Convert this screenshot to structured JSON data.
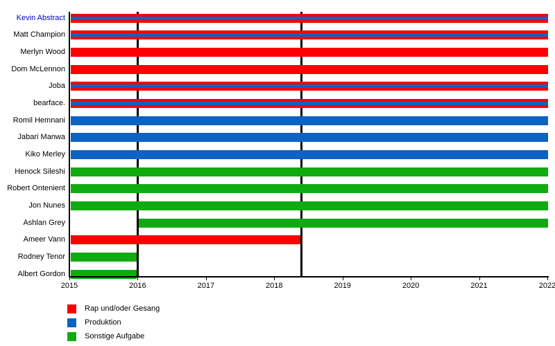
{
  "chart_data": {
    "type": "timeline",
    "description": "Band member timeline chart, roles shown as colored horizontal bars per member",
    "link_color": "#0000cc",
    "axis_color": "#000000",
    "x_axis": {
      "min": 2015,
      "max": 2022,
      "ticks": [
        2015,
        2016,
        2017,
        2018,
        2019,
        2020,
        2021,
        2022
      ]
    },
    "event_lines": [
      2016,
      2018.4
    ],
    "roles": {
      "vocals": {
        "label": "Rap und/oder Gesang",
        "color": "#fa0000"
      },
      "production": {
        "label": "Produktion",
        "color": "#0c63c4"
      },
      "other": {
        "label": "Sonstige Aufgabe",
        "color": "#10ab10"
      }
    },
    "legend_order": [
      "vocals",
      "production",
      "other"
    ],
    "members": [
      {
        "name": "Kevin Abstract",
        "link": true,
        "bars": [
          {
            "roles": [
              "vocals",
              "production"
            ],
            "from": 2015,
            "to": 2022
          }
        ]
      },
      {
        "name": "Matt Champion",
        "link": false,
        "bars": [
          {
            "roles": [
              "vocals",
              "production"
            ],
            "from": 2015,
            "to": 2022
          }
        ]
      },
      {
        "name": "Merlyn Wood",
        "link": false,
        "bars": [
          {
            "roles": [
              "vocals"
            ],
            "from": 2015,
            "to": 2022
          }
        ]
      },
      {
        "name": "Dom McLennon",
        "link": false,
        "bars": [
          {
            "roles": [
              "vocals"
            ],
            "from": 2015,
            "to": 2022
          }
        ]
      },
      {
        "name": "Joba",
        "link": false,
        "bars": [
          {
            "roles": [
              "vocals",
              "production"
            ],
            "from": 2015,
            "to": 2022
          }
        ]
      },
      {
        "name": "bearface.",
        "link": false,
        "bars": [
          {
            "roles": [
              "vocals",
              "production"
            ],
            "from": 2015,
            "to": 2022
          }
        ]
      },
      {
        "name": "Romil Hemnani",
        "link": false,
        "bars": [
          {
            "roles": [
              "production"
            ],
            "from": 2015,
            "to": 2022
          }
        ]
      },
      {
        "name": "Jabari Manwa",
        "link": false,
        "bars": [
          {
            "roles": [
              "production"
            ],
            "from": 2015,
            "to": 2022
          }
        ]
      },
      {
        "name": "Kiko Merley",
        "link": false,
        "bars": [
          {
            "roles": [
              "production"
            ],
            "from": 2015,
            "to": 2022
          }
        ]
      },
      {
        "name": "Henock Sileshi",
        "link": false,
        "bars": [
          {
            "roles": [
              "other"
            ],
            "from": 2015,
            "to": 2022
          }
        ]
      },
      {
        "name": "Robert Ontenient",
        "link": false,
        "bars": [
          {
            "roles": [
              "other"
            ],
            "from": 2015,
            "to": 2022
          }
        ]
      },
      {
        "name": "Jon Nunes",
        "link": false,
        "bars": [
          {
            "roles": [
              "other"
            ],
            "from": 2015,
            "to": 2022
          }
        ]
      },
      {
        "name": "Ashlan Grey",
        "link": false,
        "bars": [
          {
            "roles": [
              "other"
            ],
            "from": 2016,
            "to": 2022
          }
        ]
      },
      {
        "name": "Ameer Vann",
        "link": false,
        "bars": [
          {
            "roles": [
              "vocals"
            ],
            "from": 2015,
            "to": 2018.4
          }
        ]
      },
      {
        "name": "Rodney Tenor",
        "link": false,
        "bars": [
          {
            "roles": [
              "other"
            ],
            "from": 2015,
            "to": 2016
          }
        ]
      },
      {
        "name": "Albert Gordon",
        "link": false,
        "bars": [
          {
            "roles": [
              "other"
            ],
            "from": 2015,
            "to": 2016
          }
        ]
      }
    ],
    "legend": [
      {
        "label": "Rap und/oder Gesang",
        "color": "#fa0000"
      },
      {
        "label": "Produktion",
        "color": "#0c63c4"
      },
      {
        "label": "Sonstige Aufgabe",
        "color": "#10ab10"
      }
    ]
  },
  "layout_hints": {
    "grid": "off",
    "legend_position": "bottom-left"
  }
}
